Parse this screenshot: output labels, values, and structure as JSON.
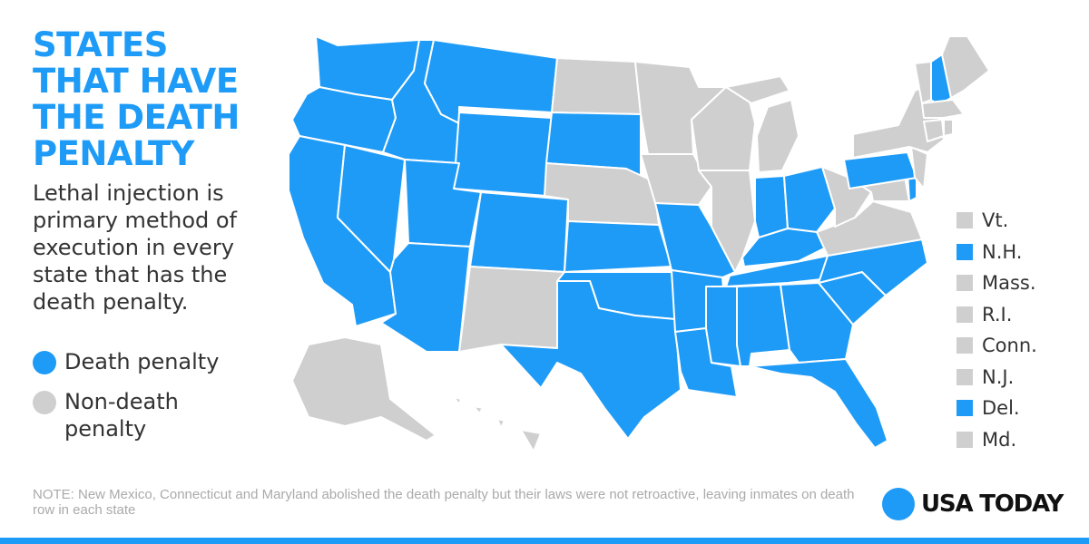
{
  "title_lines": [
    "STATES",
    "THAT HAVE",
    "THE DEATH",
    "PENALTY"
  ],
  "subtitle": "Lethal injection is primary method of execution in every state that has the death penalty.",
  "legend": [
    {
      "label": "Death penalty",
      "status": "death"
    },
    {
      "label": "Non-death penalty",
      "status": "non_death"
    }
  ],
  "small_states": [
    {
      "label": "Vt.",
      "status": "non_death"
    },
    {
      "label": "N.H.",
      "status": "death"
    },
    {
      "label": "Mass.",
      "status": "non_death"
    },
    {
      "label": "R.I.",
      "status": "non_death"
    },
    {
      "label": "Conn.",
      "status": "non_death"
    },
    {
      "label": "N.J.",
      "status": "non_death"
    },
    {
      "label": "Del.",
      "status": "death"
    },
    {
      "label": "Md.",
      "status": "non_death"
    }
  ],
  "state_status": {
    "WA": "death",
    "OR": "death",
    "CA": "death",
    "ID": "death",
    "NV": "death",
    "MT": "death",
    "WY": "death",
    "UT": "death",
    "AZ": "death",
    "CO": "death",
    "NM": "non_death",
    "ND": "non_death",
    "SD": "death",
    "NE": "non_death",
    "KS": "death",
    "OK": "death",
    "TX": "death",
    "MN": "non_death",
    "IA": "non_death",
    "MO": "death",
    "AR": "death",
    "LA": "death",
    "WI": "non_death",
    "IL": "non_death",
    "MI": "non_death",
    "IN": "death",
    "OH": "death",
    "KY": "death",
    "TN": "death",
    "MS": "death",
    "AL": "death",
    "GA": "death",
    "FL": "death",
    "SC": "death",
    "NC": "death",
    "VA": "non_death",
    "WV": "non_death",
    "PA": "death",
    "NY": "non_death",
    "ME": "non_death",
    "VT": "non_death",
    "NH": "death",
    "MA": "non_death",
    "RI": "non_death",
    "CT": "non_death",
    "NJ": "non_death",
    "DE": "death",
    "MD": "non_death",
    "AK": "non_death",
    "HI": "non_death"
  },
  "note": "NOTE: New Mexico, Connecticut and Maryland abolished the death penalty but their laws were not retroactive, leaving inmates on death row in each state",
  "brand": "USA TODAY",
  "colors": {
    "death": "#1e9bf7",
    "non_death": "#cfcfcf",
    "title": "#1e9bf7",
    "text": "#333333",
    "note": "#aaaaaa",
    "border": "#ffffff",
    "brand_dot": "#1e9bf7",
    "bottom_bar": "#1e9bf7"
  }
}
